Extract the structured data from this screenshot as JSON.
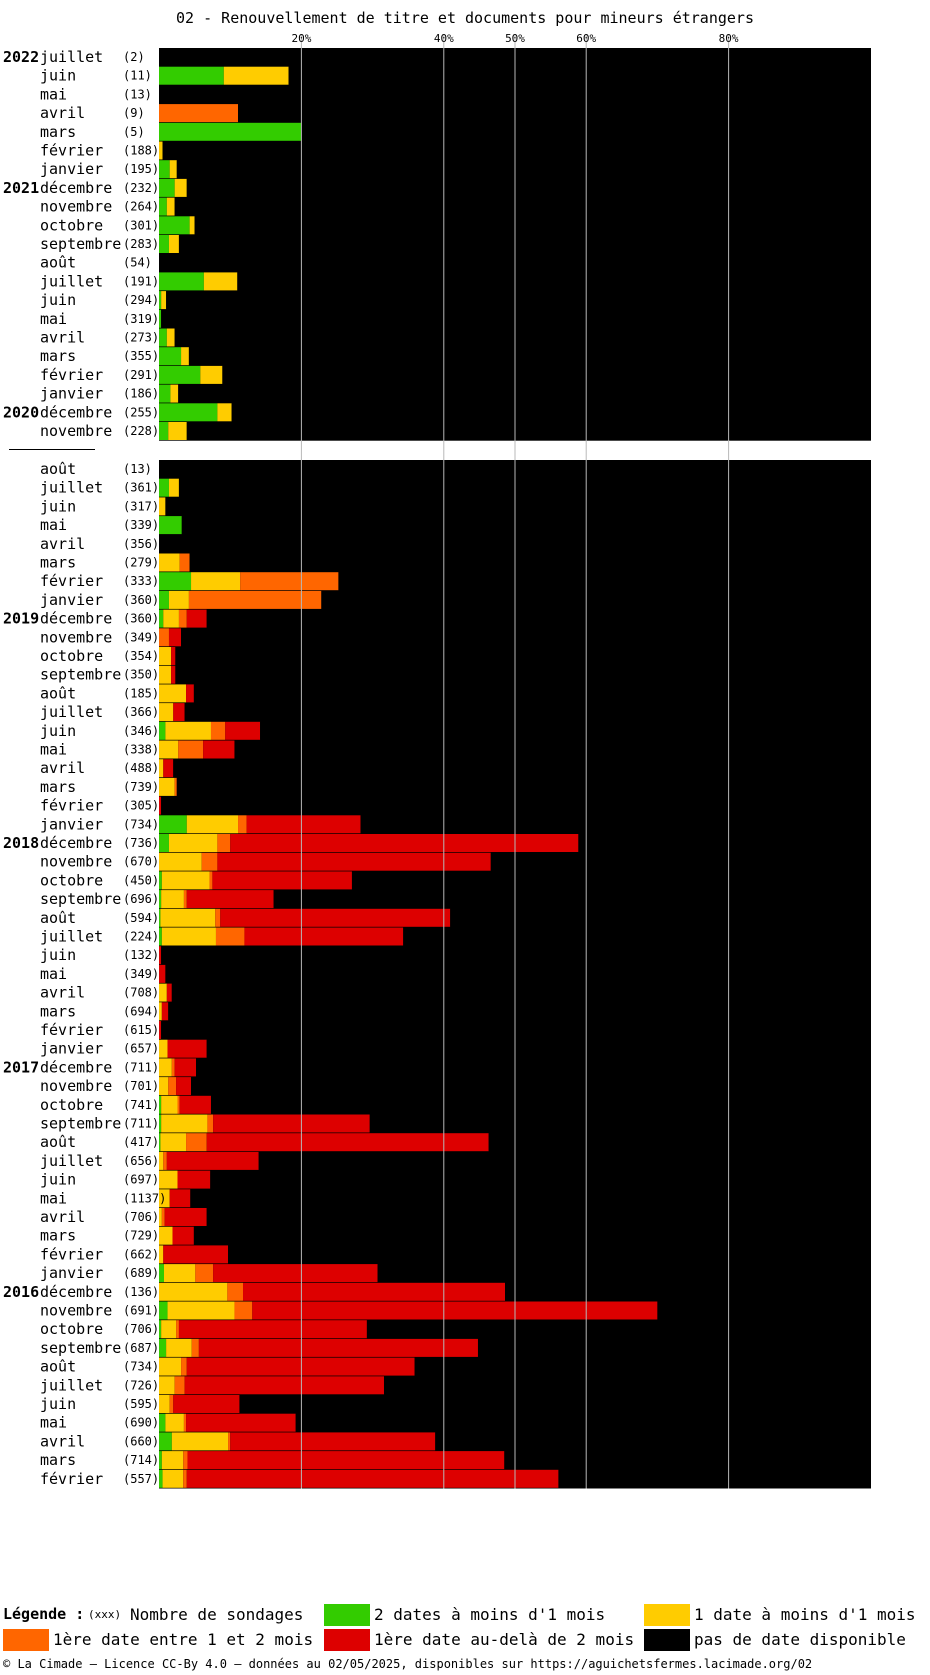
{
  "title": "02 - Renouvellement de titre et documents pour mineurs étrangers",
  "chart_data": {
    "type": "bar",
    "orientation": "horizontal",
    "stacked": true,
    "xlim": [
      0,
      100
    ],
    "x_ticks": [
      20,
      40,
      50,
      60,
      80
    ],
    "x_tick_labels": [
      "20%",
      "40%",
      "50%",
      "60%",
      "80%"
    ],
    "grid": true,
    "legend_position": "bottom",
    "series_order": [
      "moins_1_mois_2_dates",
      "moins_1_mois_1_date",
      "entre_1_et_2_mois",
      "plus_2_mois",
      "pas_de_date"
    ],
    "colors": {
      "moins_1_mois_2_dates": "#33cc00",
      "moins_1_mois_1_date": "#ffcc00",
      "entre_1_et_2_mois": "#ff6600",
      "plus_2_mois": "#dd0000",
      "pas_de_date": "#000000"
    },
    "separator_index": 21,
    "rows": [
      {
        "year": "2022",
        "month": "juillet",
        "count": "(2)",
        "values": [
          0,
          0,
          0,
          0,
          100
        ]
      },
      {
        "year": "",
        "month": "juin",
        "count": "(11)",
        "values": [
          9.1,
          9.1,
          0,
          0,
          81.8
        ]
      },
      {
        "year": "",
        "month": "mai",
        "count": "(13)",
        "values": [
          0,
          0,
          0,
          0,
          100
        ]
      },
      {
        "year": "",
        "month": "avril",
        "count": "(9)",
        "values": [
          0,
          0,
          11.1,
          0,
          88.9
        ]
      },
      {
        "year": "",
        "month": "mars",
        "count": "(5)",
        "values": [
          20,
          0,
          0,
          0,
          80
        ]
      },
      {
        "year": "",
        "month": "février",
        "count": "(188)",
        "values": [
          0,
          0.5,
          0,
          0,
          99.5
        ]
      },
      {
        "year": "",
        "month": "janvier",
        "count": "(195)",
        "values": [
          1.5,
          1,
          0,
          0,
          97.5
        ]
      },
      {
        "year": "2021",
        "month": "décembre",
        "count": "(232)",
        "values": [
          2.2,
          1.7,
          0,
          0,
          96.1
        ]
      },
      {
        "year": "",
        "month": "novembre",
        "count": "(264)",
        "values": [
          1.1,
          1.1,
          0,
          0,
          97.8
        ]
      },
      {
        "year": "",
        "month": "octobre",
        "count": "(301)",
        "values": [
          4.3,
          0.7,
          0,
          0,
          95
        ]
      },
      {
        "year": "",
        "month": "septembre",
        "count": "(283)",
        "values": [
          1.4,
          1.4,
          0,
          0,
          97.2
        ]
      },
      {
        "year": "",
        "month": "août",
        "count": "(54)",
        "values": [
          0,
          0,
          0,
          0,
          100
        ]
      },
      {
        "year": "",
        "month": "juillet",
        "count": "(191)",
        "values": [
          6.3,
          4.7,
          0,
          0,
          89
        ]
      },
      {
        "year": "",
        "month": "juin",
        "count": "(294)",
        "values": [
          0.3,
          0.7,
          0,
          0,
          99
        ]
      },
      {
        "year": "",
        "month": "mai",
        "count": "(319)",
        "values": [
          0.3,
          0,
          0,
          0,
          99.7
        ]
      },
      {
        "year": "",
        "month": "avril",
        "count": "(273)",
        "values": [
          1.1,
          1.1,
          0,
          0,
          97.8
        ]
      },
      {
        "year": "",
        "month": "mars",
        "count": "(355)",
        "values": [
          3.1,
          1.1,
          0,
          0,
          95.8
        ]
      },
      {
        "year": "",
        "month": "février",
        "count": "(291)",
        "values": [
          5.8,
          3.1,
          0,
          0,
          91.1
        ]
      },
      {
        "year": "",
        "month": "janvier",
        "count": "(186)",
        "values": [
          1.6,
          1.1,
          0,
          0,
          97.3
        ]
      },
      {
        "year": "2020",
        "month": "décembre",
        "count": "(255)",
        "values": [
          8.2,
          2,
          0,
          0,
          89.8
        ]
      },
      {
        "year": "",
        "month": "novembre",
        "count": "(228)",
        "values": [
          1.3,
          2.6,
          0,
          0,
          96.1
        ]
      },
      {
        "year": "",
        "month": "août",
        "count": "(13)",
        "values": [
          0,
          0,
          0,
          0,
          100
        ]
      },
      {
        "year": "",
        "month": "juillet",
        "count": "(361)",
        "values": [
          1.4,
          1.4,
          0,
          0,
          97.2
        ]
      },
      {
        "year": "",
        "month": "juin",
        "count": "(317)",
        "values": [
          0,
          0.9,
          0,
          0,
          99.1
        ]
      },
      {
        "year": "",
        "month": "mai",
        "count": "(339)",
        "values": [
          3.2,
          0,
          0,
          0,
          96.8
        ]
      },
      {
        "year": "",
        "month": "avril",
        "count": "(356)",
        "values": [
          0,
          0,
          0,
          0,
          100
        ]
      },
      {
        "year": "",
        "month": "mars",
        "count": "(279)",
        "values": [
          0,
          2.9,
          1.4,
          0,
          95.7
        ]
      },
      {
        "year": "",
        "month": "février",
        "count": "(333)",
        "values": [
          4.5,
          6.9,
          13.8,
          0,
          74.8
        ]
      },
      {
        "year": "",
        "month": "janvier",
        "count": "(360)",
        "values": [
          1.4,
          2.8,
          18.6,
          0,
          77.2
        ]
      },
      {
        "year": "2019",
        "month": "décembre",
        "count": "(360)",
        "values": [
          0.6,
          2.2,
          1.1,
          2.8,
          93.3
        ]
      },
      {
        "year": "",
        "month": "novembre",
        "count": "(349)",
        "values": [
          0,
          0,
          1.4,
          1.7,
          96.9
        ]
      },
      {
        "year": "",
        "month": "octobre",
        "count": "(354)",
        "values": [
          0,
          1.7,
          0,
          0.6,
          97.7
        ]
      },
      {
        "year": "",
        "month": "septembre",
        "count": "(350)",
        "values": [
          0,
          1.7,
          0,
          0.6,
          97.7
        ]
      },
      {
        "year": "",
        "month": "août",
        "count": "(185)",
        "values": [
          0,
          3.8,
          0,
          1.1,
          95.1
        ]
      },
      {
        "year": "",
        "month": "juillet",
        "count": "(366)",
        "values": [
          0,
          2,
          0,
          1.6,
          96.4
        ]
      },
      {
        "year": "",
        "month": "juin",
        "count": "(346)",
        "values": [
          0.9,
          6.4,
          2,
          4.9,
          85.8
        ]
      },
      {
        "year": "",
        "month": "mai",
        "count": "(338)",
        "values": [
          0,
          2.7,
          3.5,
          4.4,
          89.4
        ]
      },
      {
        "year": "",
        "month": "avril",
        "count": "(488)",
        "values": [
          0,
          0.6,
          0,
          1.4,
          98
        ]
      },
      {
        "year": "",
        "month": "mars",
        "count": "(739)",
        "values": [
          0,
          2.2,
          0.3,
          0,
          97.5
        ]
      },
      {
        "year": "",
        "month": "février",
        "count": "(305)",
        "values": [
          0,
          0,
          0,
          0.3,
          99.7
        ]
      },
      {
        "year": "",
        "month": "janvier",
        "count": "(734)",
        "values": [
          3.9,
          7.2,
          1.2,
          16,
          71.7
        ]
      },
      {
        "year": "2018",
        "month": "décembre",
        "count": "(736)",
        "values": [
          1.4,
          6.8,
          1.8,
          48.9,
          41.1
        ]
      },
      {
        "year": "",
        "month": "novembre",
        "count": "(670)",
        "values": [
          0,
          6,
          2.2,
          38.4,
          53.4
        ]
      },
      {
        "year": "",
        "month": "octobre",
        "count": "(450)",
        "values": [
          0.4,
          6.7,
          0.4,
          19.6,
          72.9
        ]
      },
      {
        "year": "",
        "month": "septembre",
        "count": "(696)",
        "values": [
          0.3,
          3.2,
          0.4,
          12.2,
          83.9
        ]
      },
      {
        "year": "",
        "month": "août",
        "count": "(594)",
        "values": [
          0.2,
          7.7,
          0.7,
          32.3,
          59.1
        ]
      },
      {
        "year": "",
        "month": "juillet",
        "count": "(224)",
        "values": [
          0.4,
          7.6,
          4,
          22.3,
          65.7
        ]
      },
      {
        "year": "",
        "month": "juin",
        "count": "(132)",
        "values": [
          0,
          0,
          0,
          0.3,
          99.7
        ]
      },
      {
        "year": "",
        "month": "mai",
        "count": "(349)",
        "values": [
          0,
          0,
          0,
          0.9,
          99.1
        ]
      },
      {
        "year": "",
        "month": "avril",
        "count": "(708)",
        "values": [
          0,
          1.1,
          0,
          0.7,
          98.2
        ]
      },
      {
        "year": "",
        "month": "mars",
        "count": "(694)",
        "values": [
          0,
          0.4,
          0,
          0.9,
          98.7
        ]
      },
      {
        "year": "",
        "month": "février",
        "count": "(615)",
        "values": [
          0,
          0,
          0,
          0.3,
          99.7
        ]
      },
      {
        "year": "",
        "month": "janvier",
        "count": "(657)",
        "values": [
          0,
          1.2,
          0,
          5.5,
          93.3
        ]
      },
      {
        "year": "2017",
        "month": "décembre",
        "count": "(711)",
        "values": [
          0,
          1.8,
          0.4,
          3,
          94.8
        ]
      },
      {
        "year": "",
        "month": "novembre",
        "count": "(701)",
        "values": [
          0,
          1.3,
          1.1,
          2.1,
          95.5
        ]
      },
      {
        "year": "",
        "month": "octobre",
        "count": "(741)",
        "values": [
          0.3,
          2.3,
          0.3,
          4.4,
          92.7
        ]
      },
      {
        "year": "",
        "month": "septembre",
        "count": "(711)",
        "values": [
          0.3,
          6.5,
          0.8,
          22,
          70.4
        ]
      },
      {
        "year": "",
        "month": "août",
        "count": "(417)",
        "values": [
          0.2,
          3.6,
          2.9,
          39.6,
          53.7
        ]
      },
      {
        "year": "",
        "month": "juillet",
        "count": "(656)",
        "values": [
          0,
          0.6,
          0.5,
          12.9,
          86
        ]
      },
      {
        "year": "",
        "month": "juin",
        "count": "(697)",
        "values": [
          0,
          2.6,
          0,
          4.6,
          92.8
        ]
      },
      {
        "year": "",
        "month": "mai",
        "count": "(1137)",
        "values": [
          0,
          1.5,
          0,
          2.9,
          95.6
        ]
      },
      {
        "year": "",
        "month": "avril",
        "count": "(706)",
        "values": [
          0,
          0.4,
          0.4,
          5.9,
          93.3
        ]
      },
      {
        "year": "",
        "month": "mars",
        "count": "(729)",
        "values": [
          0,
          1.9,
          0,
          3,
          95.1
        ]
      },
      {
        "year": "",
        "month": "février",
        "count": "(662)",
        "values": [
          0,
          0.6,
          0,
          9.1,
          90.3
        ]
      },
      {
        "year": "",
        "month": "janvier",
        "count": "(689)",
        "values": [
          0.7,
          4.4,
          2.5,
          23.1,
          69.3
        ]
      },
      {
        "year": "2016",
        "month": "décembre",
        "count": "(136)",
        "values": [
          0,
          9.6,
          2.2,
          36.8,
          51.4
        ]
      },
      {
        "year": "",
        "month": "novembre",
        "count": "(691)",
        "values": [
          1.2,
          9.4,
          2.5,
          56.9,
          30
        ]
      },
      {
        "year": "",
        "month": "octobre",
        "count": "(706)",
        "values": [
          0.3,
          2.1,
          0.4,
          26.4,
          70.8
        ]
      },
      {
        "year": "",
        "month": "septembre",
        "count": "(687)",
        "values": [
          1,
          3.6,
          1,
          39.2,
          55.2
        ]
      },
      {
        "year": "",
        "month": "août",
        "count": "(734)",
        "values": [
          0,
          3.1,
          0.8,
          32,
          64.1
        ]
      },
      {
        "year": "",
        "month": "juillet",
        "count": "(726)",
        "values": [
          0,
          2.2,
          1.4,
          28,
          68.4
        ]
      },
      {
        "year": "",
        "month": "juin",
        "count": "(595)",
        "values": [
          0,
          1.5,
          0.5,
          9.3,
          88.7
        ]
      },
      {
        "year": "",
        "month": "mai",
        "count": "(690)",
        "values": [
          0.9,
          2.6,
          0.3,
          15.4,
          80.8
        ]
      },
      {
        "year": "",
        "month": "avril",
        "count": "(660)",
        "values": [
          1.8,
          7.9,
          0.3,
          28.8,
          61.2
        ]
      },
      {
        "year": "",
        "month": "mars",
        "count": "(714)",
        "values": [
          0.4,
          3,
          0.6,
          44.5,
          51.5
        ]
      },
      {
        "year": "",
        "month": "février",
        "count": "(557)",
        "values": [
          0.5,
          2.9,
          0.5,
          52.2,
          43.9
        ]
      }
    ]
  },
  "legend": {
    "title": "Légende :",
    "count_marker": "(xxx)",
    "count_label": "Nombre de sondages",
    "items": [
      {
        "label": "2 dates à moins d'1 mois",
        "color": "#33cc00"
      },
      {
        "label": "1 date à moins d'1 mois",
        "color": "#ffcc00"
      },
      {
        "label": "1ère date entre 1 et 2 mois",
        "color": "#ff6600"
      },
      {
        "label": "1ère date au-delà de 2 mois",
        "color": "#dd0000"
      },
      {
        "label": "pas de date disponible",
        "color": "#000000"
      }
    ]
  },
  "footer": "© La Cimade — Licence CC-By 4.0 — données au 02/05/2025, disponibles sur https://aguichetsfermes.lacimade.org/02"
}
